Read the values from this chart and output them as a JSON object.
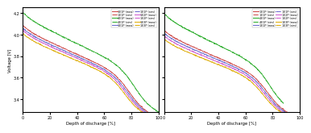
{
  "xlabel": "Depth of discharge [%]",
  "ylabel": "Voltage [V]",
  "xlim": [
    0,
    100
  ],
  "ylim": [
    3.28,
    4.25
  ],
  "yticks": [
    3.4,
    3.6,
    3.8,
    4.0,
    4.2
  ],
  "xticks": [
    0,
    20,
    40,
    60,
    80,
    100
  ],
  "series_1c": [
    {
      "v0": 4.085,
      "v_end": 3.34,
      "knee": 0.78,
      "color": "#cc4444",
      "ls": "-",
      "noise": 0.003,
      "label": "1E1P (mea)",
      "end": 100
    },
    {
      "v0": 4.085,
      "v_end": 3.34,
      "knee": 0.78,
      "color": "#cc4444",
      "ls": "-.",
      "noise": 0.0,
      "label": "1E1P (sim)",
      "end": 100
    },
    {
      "v0": 4.205,
      "v_end": 3.4,
      "knee": 0.82,
      "color": "#22aa22",
      "ls": "-",
      "noise": 0.003,
      "label": "4E1P (mea)",
      "end": 100
    },
    {
      "v0": 4.205,
      "v_end": 3.4,
      "knee": 0.82,
      "color": "#22aa22",
      "ls": "-.",
      "noise": 0.0,
      "label": "4E1P (sim)",
      "end": 100
    },
    {
      "v0": 4.06,
      "v_end": 3.33,
      "knee": 0.77,
      "color": "#6666cc",
      "ls": "-",
      "noise": 0.003,
      "label": "1E1P (mea)",
      "end": 100
    },
    {
      "v0": 4.06,
      "v_end": 3.33,
      "knee": 0.77,
      "color": "#6666cc",
      "ls": "-.",
      "noise": 0.0,
      "label": "1E1P (sim)",
      "end": 100
    },
    {
      "v0": 4.04,
      "v_end": 3.32,
      "knee": 0.76,
      "color": "#cc55cc",
      "ls": "-",
      "noise": 0.003,
      "label": "1E2P (mea)",
      "end": 100
    },
    {
      "v0": 4.04,
      "v_end": 3.32,
      "knee": 0.76,
      "color": "#cc55cc",
      "ls": "-.",
      "noise": 0.0,
      "label": "1E2P (sim)",
      "end": 100
    },
    {
      "v0": 4.01,
      "v_end": 3.31,
      "knee": 0.75,
      "color": "#ddaa00",
      "ls": "-",
      "noise": 0.003,
      "label": "1E3P (mea)",
      "end": 100
    },
    {
      "v0": 4.01,
      "v_end": 3.31,
      "knee": 0.75,
      "color": "#ddaa00",
      "ls": "-.",
      "noise": 0.0,
      "label": "1E3P (sim)",
      "end": 100
    }
  ],
  "series_2c": [
    {
      "v0": 4.04,
      "v_end": 3.33,
      "knee": 0.76,
      "color": "#cc4444",
      "ls": "-",
      "noise": 0.003,
      "label": "1E1P (mea)",
      "end": 100
    },
    {
      "v0": 4.04,
      "v_end": 3.33,
      "knee": 0.76,
      "color": "#cc4444",
      "ls": "-.",
      "noise": 0.0,
      "label": "1E1P (sim)",
      "end": 100
    },
    {
      "v0": 4.195,
      "v_end": 3.38,
      "knee": 0.78,
      "color": "#22aa22",
      "ls": "-",
      "noise": 0.003,
      "label": "4E1P (mea)",
      "end": 88
    },
    {
      "v0": 4.195,
      "v_end": 3.38,
      "knee": 0.78,
      "color": "#22aa22",
      "ls": "-.",
      "noise": 0.0,
      "label": "4E1P (sim)",
      "end": 88
    },
    {
      "v0": 4.015,
      "v_end": 3.32,
      "knee": 0.75,
      "color": "#6666cc",
      "ls": "-",
      "noise": 0.003,
      "label": "1E1P (mea)",
      "end": 100
    },
    {
      "v0": 4.015,
      "v_end": 3.32,
      "knee": 0.75,
      "color": "#6666cc",
      "ls": "-.",
      "noise": 0.0,
      "label": "1E1P (sim)",
      "end": 100
    },
    {
      "v0": 3.99,
      "v_end": 3.31,
      "knee": 0.74,
      "color": "#cc55cc",
      "ls": "-",
      "noise": 0.003,
      "label": "1E2P (mea)",
      "end": 100
    },
    {
      "v0": 3.99,
      "v_end": 3.31,
      "knee": 0.74,
      "color": "#cc55cc",
      "ls": "-.",
      "noise": 0.0,
      "label": "1E2P (sim)",
      "end": 100
    },
    {
      "v0": 3.96,
      "v_end": 3.3,
      "knee": 0.73,
      "color": "#ddaa00",
      "ls": "-",
      "noise": 0.003,
      "label": "1E3P (mea)",
      "end": 100
    },
    {
      "v0": 3.96,
      "v_end": 3.3,
      "knee": 0.73,
      "color": "#ddaa00",
      "ls": "-.",
      "noise": 0.0,
      "label": "1E3P (sim)",
      "end": 100
    }
  ]
}
